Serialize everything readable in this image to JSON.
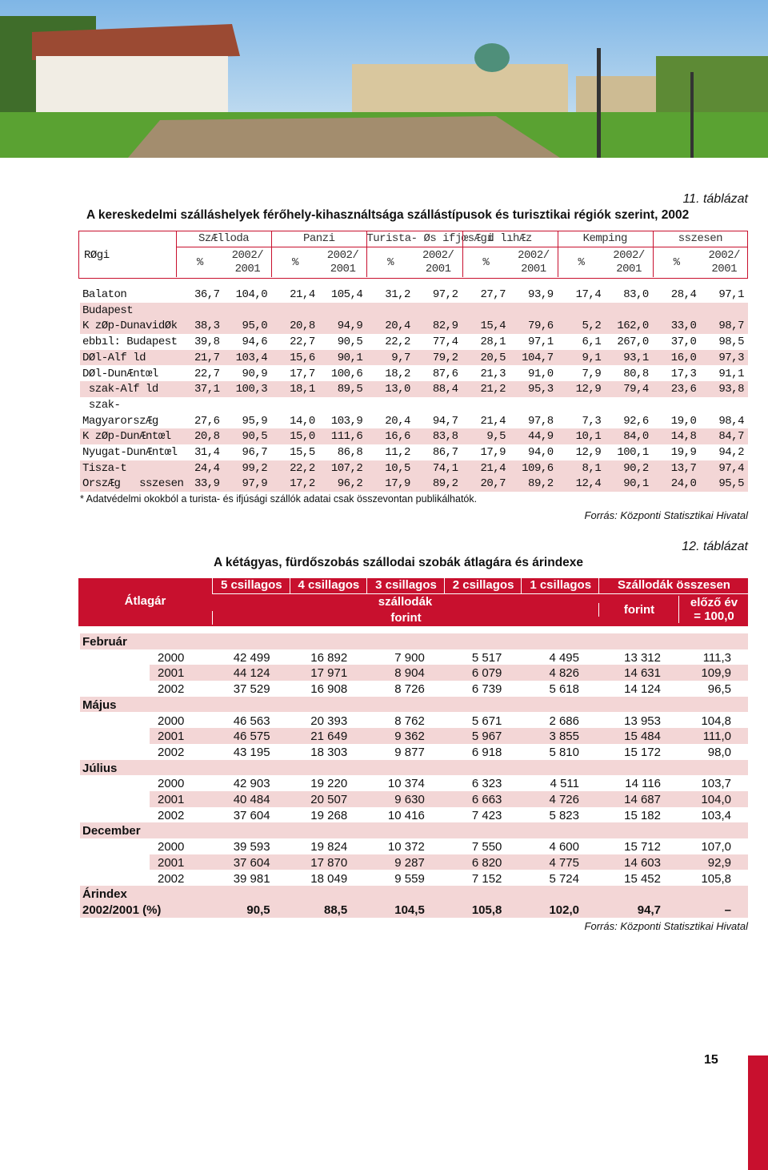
{
  "table1": {
    "number": "11. táblázat",
    "title": "A kereskedelmi szálláshelyek férőhely-kihasználtsága szállástípusok és turisztikai régiók szerint, 2002",
    "region_header": "RØgi",
    "columns": [
      {
        "name": "SzÆlloda",
        "sub": [
          "%",
          "2002/\n2001"
        ]
      },
      {
        "name": "Panzi",
        "sub": [
          "%",
          "2002/\n2001"
        ]
      },
      {
        "name": "Turista- Øs ifjœsÆgi",
        "sub": [
          "%",
          "2002/\n2001"
        ]
      },
      {
        "name": "d lıhÆz",
        "sub": [
          "%",
          "2002/\n2001"
        ]
      },
      {
        "name": "Kemping",
        "sub": [
          "%",
          "2002/\n2001"
        ]
      },
      {
        "name": "sszesen",
        "sub": [
          "%",
          "2002/\n2001"
        ]
      }
    ],
    "rows": [
      {
        "label": "Balaton",
        "values": [
          "36,7",
          "104,0",
          "21,4",
          "105,4",
          "31,2",
          "97,2",
          "27,7",
          "93,9",
          "17,4",
          "83,0",
          "28,4",
          "97,1"
        ]
      },
      {
        "label": "Budapest\nK zØp-DunavidØk",
        "values": [
          "38,3",
          "95,0",
          "20,8",
          "94,9",
          "20,4",
          "82,9",
          "15,4",
          "79,6",
          "5,2",
          "162,0",
          "33,0",
          "98,7"
        ]
      },
      {
        "label": "ebbıl: Budapest",
        "values": [
          "39,8",
          "94,6",
          "22,7",
          "90,5",
          "22,2",
          "77,4",
          "28,1",
          "97,1",
          "6,1",
          "267,0",
          "37,0",
          "98,5"
        ]
      },
      {
        "label": "DØl-Alf ld",
        "values": [
          "21,7",
          "103,4",
          "15,6",
          "90,1",
          "9,7",
          "79,2",
          "20,5",
          "104,7",
          "9,1",
          "93,1",
          "16,0",
          "97,3"
        ]
      },
      {
        "label": "DØl-DunÆntœl",
        "values": [
          "22,7",
          "90,9",
          "17,7",
          "100,6",
          "18,2",
          "87,6",
          "21,3",
          "91,0",
          "7,9",
          "80,8",
          "17,3",
          "91,1"
        ]
      },
      {
        "label": " szak-Alf ld",
        "values": [
          "37,1",
          "100,3",
          "18,1",
          "89,5",
          "13,0",
          "88,4",
          "21,2",
          "95,3",
          "12,9",
          "79,4",
          "23,6",
          "93,8"
        ]
      },
      {
        "label": " szak-\nMagyarorszÆg",
        "values": [
          "27,6",
          "95,9",
          "14,0",
          "103,9",
          "20,4",
          "94,7",
          "21,4",
          "97,8",
          "7,3",
          "92,6",
          "19,0",
          "98,4"
        ]
      },
      {
        "label": "K zØp-DunÆntœl",
        "values": [
          "20,8",
          "90,5",
          "15,0",
          "111,6",
          "16,6",
          "83,8",
          "9,5",
          "44,9",
          "10,1",
          "84,0",
          "14,8",
          "84,7"
        ]
      },
      {
        "label": "Nyugat-DunÆntœl",
        "values": [
          "31,4",
          "96,7",
          "15,5",
          "86,8",
          "11,2",
          "86,7",
          "17,9",
          "94,0",
          "12,9",
          "100,1",
          "19,9",
          "94,2"
        ]
      },
      {
        "label": "Tisza-t",
        "values": [
          "24,4",
          "99,2",
          "22,2",
          "107,2",
          "10,5",
          "74,1",
          "21,4",
          "109,6",
          "8,1",
          "90,2",
          "13,7",
          "97,4"
        ]
      },
      {
        "label": "OrszÆg   sszesen",
        "values": [
          "33,9",
          "97,9",
          "17,2",
          "96,2",
          "17,9",
          "89,2",
          "20,7",
          "89,2",
          "12,4",
          "90,1",
          "24,0",
          "95,5"
        ]
      }
    ],
    "footnote": "* Adatvédelmi okokból a turista- és ifjúsági szállók adatai csak összevontan publikálhatók.",
    "source": "Forrás: Központi Statisztikai Hivatal"
  },
  "table2": {
    "number": "12. táblázat",
    "title": "A kétágyas, fürdőszobás szállodai szobák átlagára és árindexe",
    "corner": "Átlagár",
    "stars": [
      "5 csillagos",
      "4 csillagos",
      "3 csillagos",
      "2 csillagos",
      "1 csillagos"
    ],
    "stars_sub": "szállodák",
    "unit": "forint",
    "total": "Szállodák összesen",
    "total_unit": "forint",
    "total_index": "előző év\n= 100,0",
    "groups": [
      {
        "label": "Február",
        "rows": [
          [
            "2000",
            "42 499",
            "16 892",
            "7 900",
            "5 517",
            "4 495",
            "13 312",
            "111,3"
          ],
          [
            "2001",
            "44 124",
            "17 971",
            "8 904",
            "6 079",
            "4 826",
            "14 631",
            "109,9"
          ],
          [
            "2002",
            "37 529",
            "16 908",
            "8 726",
            "6 739",
            "5 618",
            "14 124",
            "96,5"
          ]
        ]
      },
      {
        "label": "Május",
        "rows": [
          [
            "2000",
            "46 563",
            "20 393",
            "8 762",
            "5 671",
            "2 686",
            "13 953",
            "104,8"
          ],
          [
            "2001",
            "46 575",
            "21 649",
            "9 362",
            "5 967",
            "3 855",
            "15 484",
            "111,0"
          ],
          [
            "2002",
            "43 195",
            "18 303",
            "9 877",
            "6 918",
            "5 810",
            "15 172",
            "98,0"
          ]
        ]
      },
      {
        "label": "Július",
        "rows": [
          [
            "2000",
            "42 903",
            "19 220",
            "10 374",
            "6 323",
            "4 511",
            "14 116",
            "103,7"
          ],
          [
            "2001",
            "40 484",
            "20 507",
            "9 630",
            "6 663",
            "4 726",
            "14 687",
            "104,0"
          ],
          [
            "2002",
            "37 604",
            "19 268",
            "10 416",
            "7 423",
            "5 823",
            "15 182",
            "103,4"
          ]
        ]
      },
      {
        "label": "December",
        "rows": [
          [
            "2000",
            "39 593",
            "19 824",
            "10 372",
            "7 550",
            "4 600",
            "15 712",
            "107,0"
          ],
          [
            "2001",
            "37 604",
            "17 870",
            "9 287",
            "6 820",
            "4 775",
            "14 603",
            "92,9"
          ],
          [
            "2002",
            "39 981",
            "18 049",
            "9 559",
            "7 152",
            "5 724",
            "15 452",
            "105,8"
          ]
        ]
      }
    ],
    "index_row": {
      "label": "Árindex",
      "sublabel": "2002/2001 (%)",
      "values": [
        "90,5",
        "88,5",
        "104,5",
        "105,8",
        "102,0",
        "94,7",
        "–"
      ]
    },
    "source": "Forrás: Központi Statisztikai Hivatal"
  },
  "page_number": "15"
}
